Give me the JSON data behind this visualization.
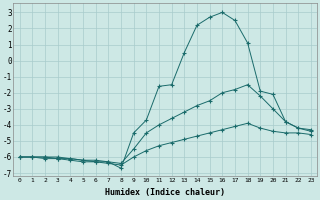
{
  "xlabel": "Humidex (Indice chaleur)",
  "background_color": "#cde8e5",
  "grid_color": "#a8cccc",
  "line_color": "#1a6b6b",
  "xlim": [
    -0.5,
    23.5
  ],
  "ylim": [
    -7.2,
    3.6
  ],
  "yticks": [
    3,
    2,
    1,
    0,
    -1,
    -2,
    -3,
    -4,
    -5,
    -6,
    -7
  ],
  "xticks": [
    0,
    1,
    2,
    3,
    4,
    5,
    6,
    7,
    8,
    9,
    10,
    11,
    12,
    13,
    14,
    15,
    16,
    17,
    18,
    19,
    20,
    21,
    22,
    23
  ],
  "series": [
    {
      "x": [
        0,
        1,
        2,
        3,
        4,
        5,
        6,
        7,
        8,
        9,
        10,
        11,
        12,
        13,
        14,
        15,
        16,
        17,
        18,
        19,
        20,
        21,
        22,
        23
      ],
      "y": [
        -6.0,
        -6.0,
        -6.0,
        -6.0,
        -6.1,
        -6.2,
        -6.2,
        -6.3,
        -6.7,
        -4.5,
        -3.7,
        -1.6,
        -1.5,
        0.5,
        2.2,
        2.7,
        3.0,
        2.5,
        1.1,
        -1.9,
        -2.1,
        -3.8,
        -4.2,
        -4.3
      ]
    },
    {
      "x": [
        0,
        1,
        2,
        3,
        4,
        5,
        6,
        7,
        8,
        9,
        10,
        11,
        12,
        13,
        14,
        15,
        16,
        17,
        18,
        19,
        20,
        21,
        22,
        23
      ],
      "y": [
        -6.0,
        -6.0,
        -6.0,
        -6.1,
        -6.1,
        -6.2,
        -6.3,
        -6.3,
        -6.4,
        -5.5,
        -4.5,
        -4.0,
        -3.6,
        -3.2,
        -2.8,
        -2.5,
        -2.0,
        -1.8,
        -1.5,
        -2.2,
        -3.0,
        -3.8,
        -4.2,
        -4.4
      ]
    },
    {
      "x": [
        0,
        1,
        2,
        3,
        4,
        5,
        6,
        7,
        8,
        9,
        10,
        11,
        12,
        13,
        14,
        15,
        16,
        17,
        18,
        19,
        20,
        21,
        22,
        23
      ],
      "y": [
        -6.0,
        -6.0,
        -6.1,
        -6.1,
        -6.2,
        -6.3,
        -6.3,
        -6.4,
        -6.5,
        -6.0,
        -5.6,
        -5.3,
        -5.1,
        -4.9,
        -4.7,
        -4.5,
        -4.3,
        -4.1,
        -3.9,
        -4.2,
        -4.4,
        -4.5,
        -4.5,
        -4.6
      ]
    }
  ]
}
